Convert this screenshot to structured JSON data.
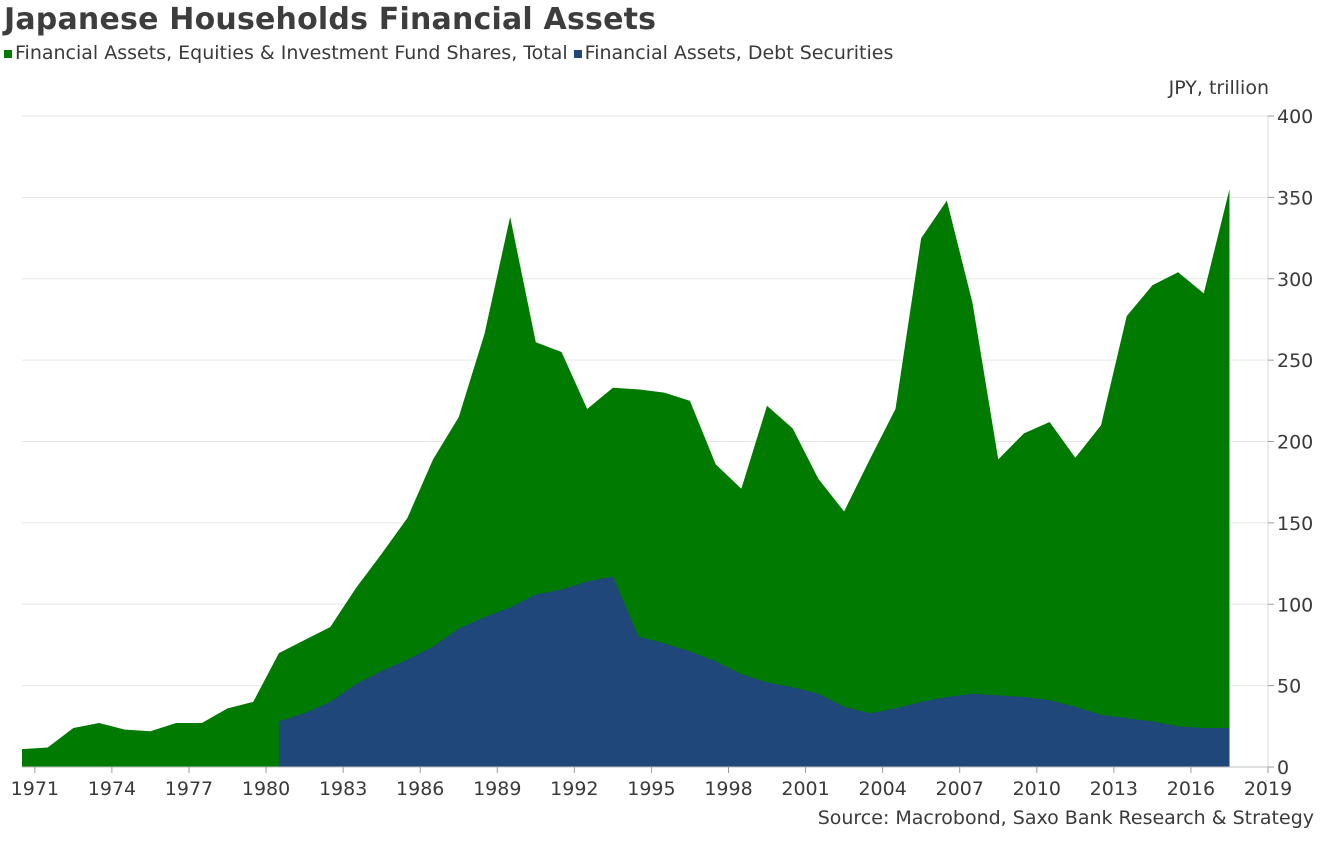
{
  "chart_data": {
    "type": "area",
    "title": "Japanese Households Financial Assets",
    "unit_label": "JPY, trillion",
    "source": "Source: Macrobond, Saxo Bank Research & Strategy",
    "xlim": [
      1970.5,
      2019
    ],
    "ylim": [
      0,
      400
    ],
    "x_ticks": [
      1971,
      1974,
      1977,
      1980,
      1983,
      1986,
      1989,
      1992,
      1995,
      1998,
      2001,
      2004,
      2007,
      2010,
      2013,
      2016,
      2019
    ],
    "y_ticks": [
      0,
      50,
      100,
      150,
      200,
      250,
      300,
      350,
      400
    ],
    "grid": "horizontal",
    "legend_position": "top-left",
    "series": [
      {
        "name": "Financial Assets, Equities & Investment Fund Shares, Total",
        "color": "#007a00",
        "x": [
          1970.5,
          1971.5,
          1972.5,
          1973.5,
          1974.5,
          1975.5,
          1976.5,
          1977.5,
          1978.5,
          1979.5,
          1980.5,
          1981.5,
          1982.5,
          1983.5,
          1984.5,
          1985.5,
          1986.5,
          1987.5,
          1988.5,
          1989.5,
          1990.5,
          1991.5,
          1992.5,
          1993.5,
          1994.5,
          1995.5,
          1996.5,
          1997.5,
          1998.5,
          1999.5,
          2000.5,
          2001.5,
          2002.5,
          2003.5,
          2004.5,
          2005.5,
          2006.5,
          2007.5,
          2008.5,
          2009.5,
          2010.5,
          2011.5,
          2012.5,
          2013.5,
          2014.5,
          2015.5,
          2016.5,
          2017.5
        ],
        "values": [
          11,
          12,
          24,
          27,
          23,
          22,
          27,
          27,
          36,
          40,
          70,
          78,
          86,
          110,
          131,
          153,
          189,
          215,
          266,
          338,
          261,
          255,
          220,
          233,
          232,
          230,
          225,
          186,
          171,
          222,
          208,
          177,
          157,
          189,
          220,
          325,
          348,
          285,
          189,
          205,
          212,
          190,
          210,
          277,
          296,
          304,
          291,
          355
        ]
      },
      {
        "name": "Financial Assets, Debt Securities",
        "color": "#1f477a",
        "x": [
          1980.5,
          1981.5,
          1982.5,
          1983.5,
          1984.5,
          1985.5,
          1986.5,
          1987.5,
          1988.5,
          1989.5,
          1990.5,
          1991.5,
          1992.5,
          1993.5,
          1994.5,
          1995.5,
          1996.5,
          1997.5,
          1998.5,
          1999.5,
          2000.5,
          2001.5,
          2002.5,
          2003.5,
          2004.5,
          2005.5,
          2006.5,
          2007.5,
          2008.5,
          2009.5,
          2010.5,
          2011.5,
          2012.5,
          2013.5,
          2014.5,
          2015.5,
          2016.5,
          2017.5
        ],
        "values": [
          28,
          33,
          40,
          51,
          59,
          66,
          74,
          85,
          92,
          98,
          106,
          109,
          114,
          117,
          80,
          76,
          71,
          65,
          57,
          52,
          49,
          45,
          37,
          33,
          36,
          40,
          43,
          45,
          44,
          43,
          41,
          37,
          32,
          30,
          28,
          25,
          24,
          24
        ]
      }
    ]
  }
}
